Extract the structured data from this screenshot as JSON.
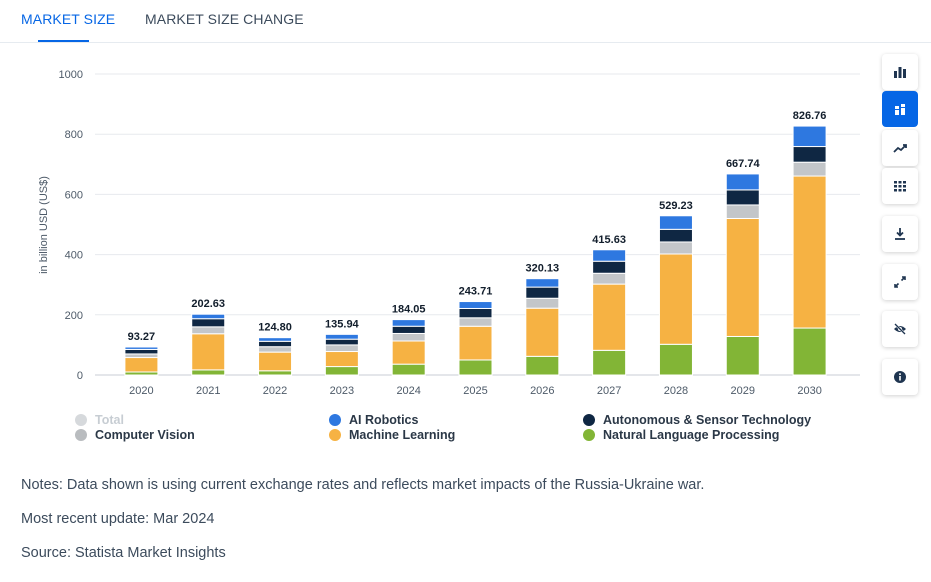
{
  "tabs": [
    {
      "label": "MARKET SIZE"
    },
    {
      "label": "MARKET SIZE CHANGE"
    }
  ],
  "toolbar": {
    "icons": [
      "bar-chart-icon",
      "stacked-bar-icon",
      "trend-line-icon",
      "table-icon",
      "download-icon",
      "expand-icon",
      "hide-icon",
      "info-icon"
    ],
    "active": "stacked-bar-icon",
    "accent": "#0666e5"
  },
  "chart_data": {
    "type": "bar",
    "stacked": true,
    "categories": [
      "2020",
      "2021",
      "2022",
      "2023",
      "2024",
      "2025",
      "2026",
      "2027",
      "2028",
      "2029",
      "2030"
    ],
    "ylabel": "in billion USD (US$)",
    "ylim": [
      0,
      1000
    ],
    "yticks": [
      0,
      200,
      400,
      600,
      800,
      1000
    ],
    "grid": true,
    "totals": [
      "93.27",
      "202.63",
      "124.80",
      "135.94",
      "184.05",
      "243.71",
      "320.13",
      "415.63",
      "529.23",
      "667.74",
      "826.76"
    ],
    "series": [
      {
        "name": "Natural Language Processing",
        "color": "#82b536",
        "values": [
          10,
          17,
          14,
          28,
          36,
          50,
          62,
          82,
          102,
          128,
          156
        ]
      },
      {
        "name": "Machine Learning",
        "color": "#f6b243",
        "values": [
          48,
          120,
          62,
          50,
          77,
          112,
          160,
          220,
          300,
          392,
          505
        ]
      },
      {
        "name": "Computer Vision",
        "color": "#c3c6c9",
        "values": [
          12,
          23,
          18,
          22,
          25,
          28,
          33,
          36,
          40,
          45,
          46
        ]
      },
      {
        "name": "Autonomous & Sensor Technology",
        "color": "#0f2743",
        "values": [
          15,
          27,
          18,
          19,
          24,
          31,
          37,
          40,
          42,
          50,
          52
        ]
      },
      {
        "name": "AI Robotics",
        "color": "#2e78e0",
        "values": [
          8,
          15,
          12,
          16,
          22,
          23,
          28,
          38,
          45,
          53,
          68
        ]
      }
    ]
  },
  "legend": [
    {
      "name": "Total",
      "color": "#d6d9dc",
      "muted": true
    },
    {
      "name": "AI Robotics",
      "color": "#2e78e0"
    },
    {
      "name": "Autonomous & Sensor Technology",
      "color": "#0f2743"
    },
    {
      "name": "Computer Vision",
      "color": "#b9bcbf"
    },
    {
      "name": "Machine Learning",
      "color": "#f6b243"
    },
    {
      "name": "Natural Language Processing",
      "color": "#82b536"
    }
  ],
  "notes": {
    "notes_text": "Notes: Data shown is using current exchange rates and reflects market impacts of the Russia-Ukraine war.",
    "update_text": "Most recent update: Mar 2024",
    "source_text": "Source: Statista Market Insights"
  }
}
